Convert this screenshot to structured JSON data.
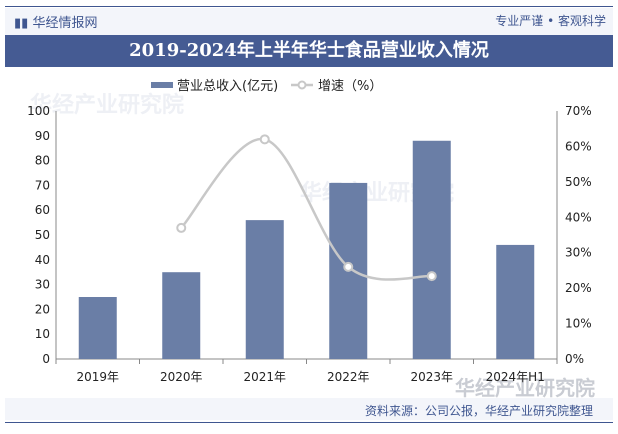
{
  "header": {
    "brand": "华经情报网",
    "slogan": "专业严谨 • 客观科学"
  },
  "source": "资料来源：公司公报，华经产业研究院整理",
  "watermark": "华经产业研究院",
  "colors": {
    "bar": "#6a7ea6",
    "line": "#c8c8c8",
    "header": "#455b93"
  },
  "chart_data": {
    "type": "bar+line",
    "title": "2019-2024年上半年华士食品营业收入情况",
    "categories": [
      "2019年",
      "2020年",
      "2021年",
      "2022年",
      "2023年",
      "2024年H1"
    ],
    "series": [
      {
        "name": "营业总收入(亿元)",
        "type": "bar",
        "axis": "left",
        "values": [
          25,
          35,
          56,
          71,
          88,
          46
        ]
      },
      {
        "name": "增速（%）",
        "type": "line",
        "axis": "right",
        "values": [
          null,
          37,
          62,
          26,
          23.4,
          null
        ]
      }
    ],
    "left_axis": {
      "ylim": [
        0,
        100
      ],
      "ticks": [
        "0",
        "10",
        "20",
        "30",
        "40",
        "50",
        "60",
        "70",
        "80",
        "90",
        "100"
      ]
    },
    "right_axis": {
      "ylim": [
        0,
        70
      ],
      "ticks": [
        "0%",
        "10%",
        "20%",
        "30%",
        "40%",
        "50%",
        "60%",
        "70%"
      ]
    },
    "legend": "top-center"
  }
}
